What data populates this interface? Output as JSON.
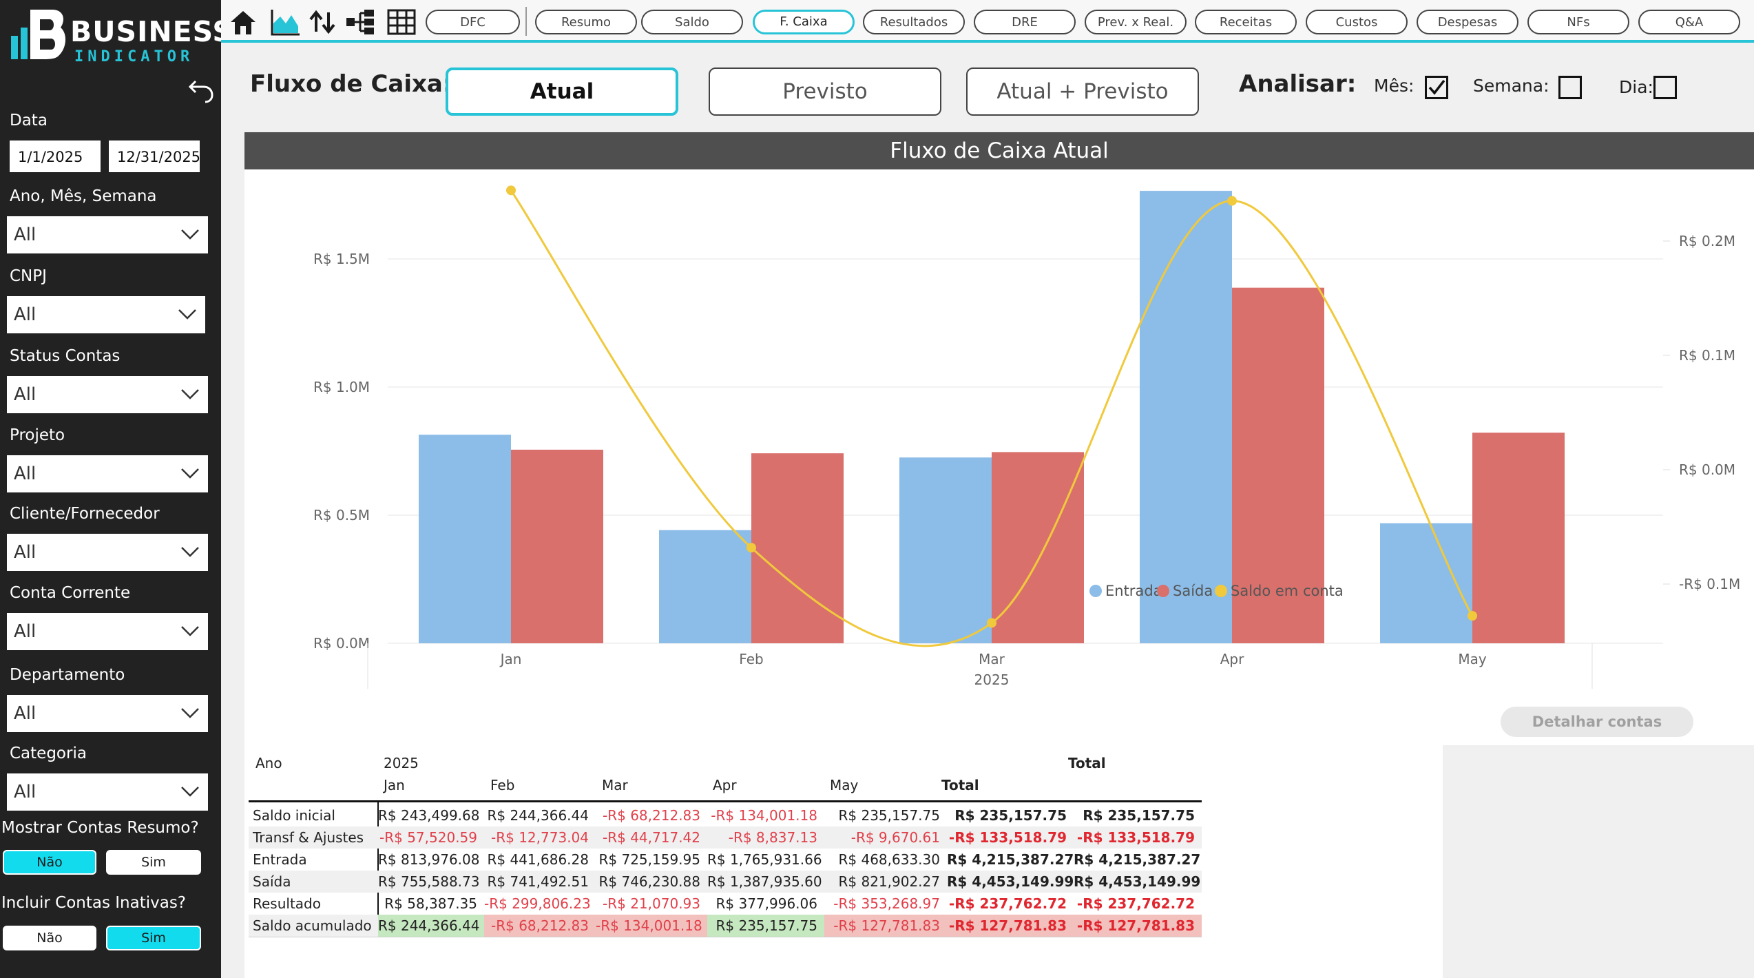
{
  "brand": {
    "word1": "BUSINESS",
    "word2": "INDICATOR"
  },
  "filters": {
    "date_label": "Data",
    "date_start": "1/1/2025",
    "date_end": "12/31/2025",
    "dropdowns": [
      {
        "label": "Ano, Mês, Semana",
        "value": "All"
      },
      {
        "label": "CNPJ",
        "value": "All"
      },
      {
        "label": "Status Contas",
        "value": "All"
      },
      {
        "label": "Projeto",
        "value": "All"
      },
      {
        "label": "Cliente/Fornecedor",
        "value": "All"
      },
      {
        "label": "Conta Corrente",
        "value": "All"
      },
      {
        "label": "Departamento",
        "value": "All"
      },
      {
        "label": "Categoria",
        "value": "All"
      }
    ],
    "resumo": {
      "label": "Mostrar Contas Resumo?",
      "no": "Não",
      "yes": "Sim",
      "selected": "Não"
    },
    "inativas": {
      "label": "Incluir Contas Inativas?",
      "no": "Não",
      "yes": "Sim",
      "selected": "Sim"
    }
  },
  "nav": {
    "icons": [
      "home-icon",
      "area-chart-icon",
      "up-down-arrows-icon",
      "hierarchy-icon",
      "table-grid-icon"
    ],
    "pills": [
      "DFC",
      "Resumo",
      "Saldo",
      "F. Caixa",
      "Resultados",
      "DRE",
      "Prev. x Real.",
      "Receitas",
      "Custos",
      "Despesas",
      "NFs",
      "Q&A"
    ],
    "active": "F. Caixa",
    "accent": "#27c3d7"
  },
  "controls": {
    "title": "Fluxo de Caixa:",
    "modes": [
      "Atual",
      "Previsto",
      "Atual + Previsto"
    ],
    "selected_mode": "Atual",
    "analisar": "Analisar:",
    "mes": "Mês:",
    "semana": "Semana:",
    "dia": "Dia:",
    "mes_checked": true,
    "semana_checked": false,
    "dia_checked": false
  },
  "chart_data": {
    "type": "bar",
    "title": "Fluxo de Caixa Atual",
    "categories": [
      "Jan",
      "Feb",
      "Mar",
      "Apr",
      "May"
    ],
    "year_label": "2025",
    "series": [
      {
        "name": "Entrada",
        "type": "bar",
        "axis": "left",
        "color": "#8cbde8",
        "values": [
          813976.08,
          441686.28,
          725159.95,
          1765931.66,
          468633.3
        ]
      },
      {
        "name": "Saída",
        "type": "bar",
        "axis": "left",
        "color": "#d9706c",
        "values": [
          755588.73,
          741492.51,
          746230.88,
          1387935.6,
          821902.27
        ]
      },
      {
        "name": "Saldo em conta",
        "type": "line",
        "axis": "right",
        "color": "#f0c93c",
        "values": [
          244366.44,
          -68212.83,
          -134001.18,
          235157.75,
          -127781.83
        ]
      }
    ],
    "y_left": {
      "ticks": [
        0,
        500000,
        1000000,
        1500000
      ],
      "tick_labels": [
        "R$ 0.0M",
        "R$ 0.5M",
        "R$ 1.0M",
        "R$ 1.5M"
      ],
      "range": [
        0,
        1850000
      ]
    },
    "y_right": {
      "ticks": [
        -100000,
        0,
        100000,
        200000
      ],
      "tick_labels": [
        "-R$ 0.1M",
        "R$ 0.0M",
        "R$ 0.1M",
        "R$ 0.2M"
      ],
      "range": [
        -150000,
        260000
      ]
    },
    "grid": true,
    "legend": "bottom-center"
  },
  "detail_button": "Detalhar contas",
  "matrix": {
    "ano_label": "Ano",
    "year": "2025",
    "total_header": "Total",
    "months": [
      "Jan",
      "Feb",
      "Mar",
      "Apr",
      "May"
    ],
    "rows": [
      {
        "label": "Saldo inicial",
        "values": [
          "R$ 243,499.68",
          "R$ 244,366.44",
          "-R$ 68,212.83",
          "-R$ 134,001.18",
          "R$ 235,157.75"
        ],
        "total": "R$ 235,157.75",
        "grand": "R$ 235,157.75"
      },
      {
        "label": "Transf & Ajustes",
        "values": [
          "-R$ 57,520.59",
          "-R$ 12,773.04",
          "-R$ 44,717.42",
          "-R$ 8,837.13",
          "-R$ 9,670.61"
        ],
        "total": "-R$ 133,518.79",
        "grand": "-R$ 133,518.79"
      },
      {
        "label": "Entrada",
        "values": [
          "R$ 813,976.08",
          "R$ 441,686.28",
          "R$ 725,159.95",
          "R$ 1,765,931.66",
          "R$ 468,633.30"
        ],
        "total": "R$ 4,215,387.27",
        "grand": "R$ 4,215,387.27"
      },
      {
        "label": "Saída",
        "values": [
          "R$ 755,588.73",
          "R$ 741,492.51",
          "R$ 746,230.88",
          "R$ 1,387,935.60",
          "R$ 821,902.27"
        ],
        "total": "R$ 4,453,149.99",
        "grand": "R$ 4,453,149.99"
      },
      {
        "label": "Resultado",
        "values": [
          "R$ 58,387.35",
          "-R$ 299,806.23",
          "-R$ 21,070.93",
          "R$ 377,996.06",
          "-R$ 353,268.97"
        ],
        "total": "-R$ 237,762.72",
        "grand": "-R$ 237,762.72"
      },
      {
        "label": "Saldo acumulado",
        "values": [
          "R$ 244,366.44",
          "-R$ 68,212.83",
          "-R$ 134,001.18",
          "R$ 235,157.75",
          "-R$ 127,781.83"
        ],
        "total": "-R$ 127,781.83",
        "grand": "-R$ 127,781.83"
      }
    ],
    "positive_fill": "#c6e8c0",
    "negative_fill": "#f2c0bd"
  }
}
